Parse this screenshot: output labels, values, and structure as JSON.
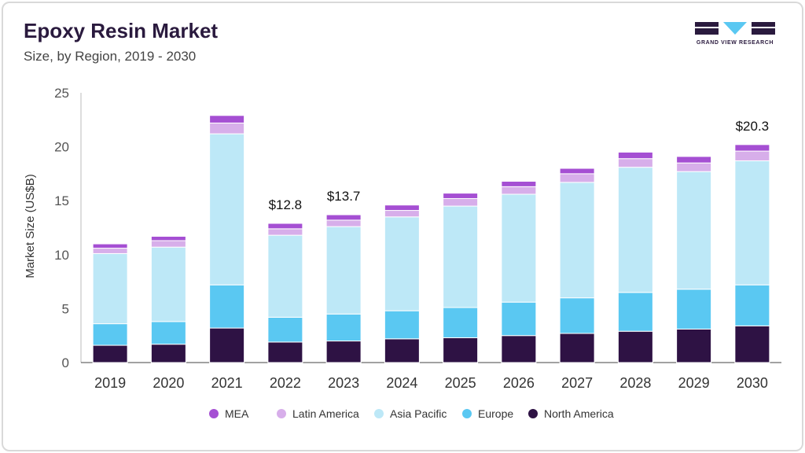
{
  "header": {
    "title": "Epoxy Resin Market",
    "subtitle": "Size, by Region, 2019 - 2030"
  },
  "logo": {
    "text": "GRAND VIEW RESEARCH"
  },
  "chart_data": {
    "type": "bar",
    "stacked": true,
    "title": "Epoxy Resin Market",
    "subtitle": "Size, by Region, 2019 - 2030",
    "xlabel": "",
    "ylabel": "Market Size (US$B)",
    "ylim": [
      0,
      25
    ],
    "yticks": [
      0,
      5,
      10,
      15,
      20,
      25
    ],
    "grid": false,
    "legend_position": "bottom",
    "categories": [
      "2019",
      "2020",
      "2021",
      "2022",
      "2023",
      "2024",
      "2025",
      "2026",
      "2027",
      "2028",
      "2029",
      "2030"
    ],
    "series": [
      {
        "name": "North America",
        "color": "#2e1244",
        "values": [
          1.6,
          1.7,
          3.2,
          1.9,
          2.0,
          2.2,
          2.3,
          2.5,
          2.7,
          2.9,
          3.1,
          3.4
        ]
      },
      {
        "name": "Europe",
        "color": "#5ac8f2",
        "values": [
          2.0,
          2.1,
          4.0,
          2.3,
          2.5,
          2.6,
          2.8,
          3.1,
          3.3,
          3.6,
          3.7,
          3.8
        ]
      },
      {
        "name": "Asia Pacific",
        "color": "#bde8f7",
        "values": [
          6.5,
          6.9,
          14.0,
          7.6,
          8.1,
          8.7,
          9.4,
          10.0,
          10.7,
          11.6,
          10.9,
          11.5
        ]
      },
      {
        "name": "Latin America",
        "color": "#d7aeea",
        "values": [
          0.5,
          0.6,
          1.0,
          0.6,
          0.6,
          0.6,
          0.7,
          0.7,
          0.8,
          0.8,
          0.8,
          0.9
        ]
      },
      {
        "name": "MEA",
        "color": "#a54fd3",
        "values": [
          0.4,
          0.4,
          0.7,
          0.5,
          0.5,
          0.5,
          0.5,
          0.5,
          0.5,
          0.6,
          0.6,
          0.6
        ]
      }
    ],
    "legend_order": [
      "MEA",
      "Latin America",
      "Asia Pacific",
      "Europe",
      "North America"
    ],
    "annotations": [
      {
        "category": "2022",
        "text": "$12.8",
        "value": 12.8
      },
      {
        "category": "2023",
        "text": "$13.7",
        "value": 13.7
      },
      {
        "category": "2030",
        "text": "$20.3",
        "value": 20.3
      }
    ]
  }
}
